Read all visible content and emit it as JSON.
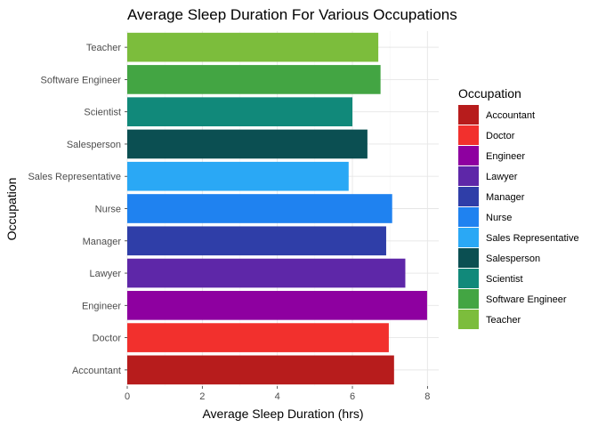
{
  "chart_data": {
    "type": "bar",
    "orientation": "horizontal",
    "title": "Average Sleep Duration For Various Occupations",
    "xlabel": "Average Sleep Duration (hrs)",
    "ylabel": "Occupation",
    "xlim": [
      0,
      8.3
    ],
    "xticks": [
      0,
      2,
      4,
      6,
      8
    ],
    "grid": true,
    "legend_title": "Occupation",
    "legend_position": "right",
    "categories": [
      "Accountant",
      "Doctor",
      "Engineer",
      "Lawyer",
      "Manager",
      "Nurse",
      "Sales Representative",
      "Salesperson",
      "Scientist",
      "Software Engineer",
      "Teacher"
    ],
    "values": [
      7.11,
      6.97,
      7.99,
      7.41,
      6.9,
      7.06,
      5.9,
      6.4,
      6.0,
      6.75,
      6.69
    ],
    "colors": [
      "#b71c1c",
      "#f2302d",
      "#8e00a0",
      "#5e27a8",
      "#2f3ea8",
      "#1f82f0",
      "#2aa8f5",
      "#0b4f52",
      "#11897a",
      "#43a543",
      "#7cbd3c"
    ]
  }
}
